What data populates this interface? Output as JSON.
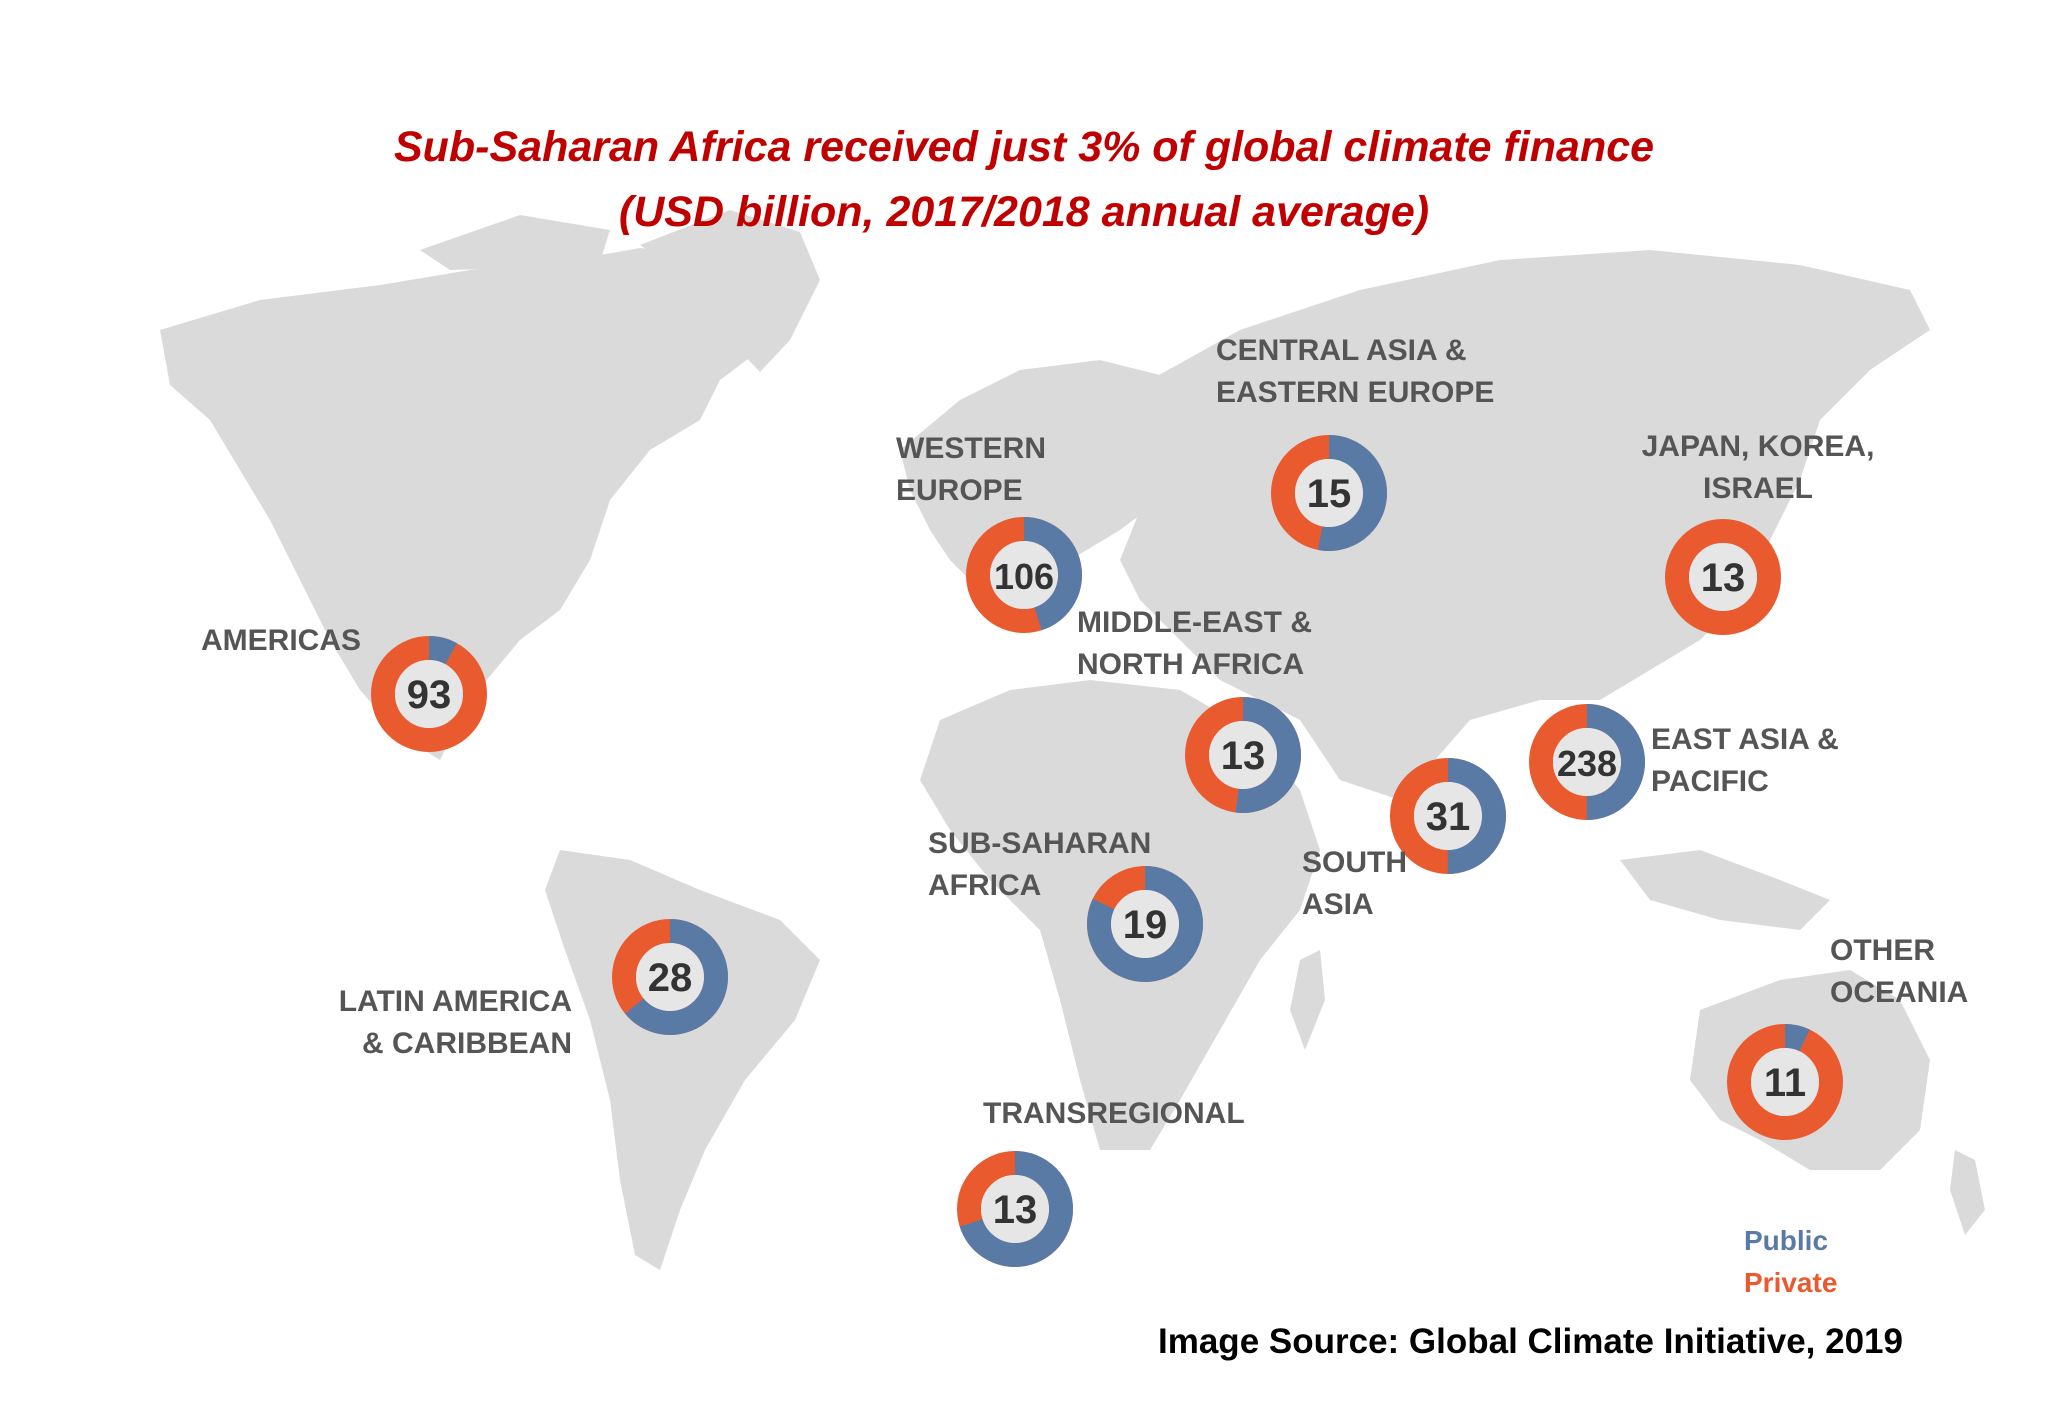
{
  "title": {
    "line1": "Sub-Saharan Africa received just 3% of global climate finance",
    "line2": "(USD billion, 2017/2018 annual average)"
  },
  "colors": {
    "public": "#5a7aa6",
    "private": "#ea5a2f",
    "land": "#dadada",
    "label": "#555555",
    "title": "#c00000"
  },
  "legend": {
    "public": "Public",
    "private": "Private"
  },
  "source": "Image Source: Global Climate Initiative, 2019",
  "regions": [
    {
      "id": "americas",
      "label": [
        "AMERICAS"
      ],
      "value": "93",
      "public_share": 0.08
    },
    {
      "id": "latin-america",
      "label": [
        "LATIN AMERICA",
        "& CARIBBEAN"
      ],
      "value": "28",
      "public_share": 0.64
    },
    {
      "id": "western-europe",
      "label": [
        "WESTERN",
        "EUROPE"
      ],
      "value": "106",
      "public_share": 0.45
    },
    {
      "id": "central-asia",
      "label": [
        "CENTRAL ASIA &",
        "EASTERN EUROPE"
      ],
      "value": "15",
      "public_share": 0.53
    },
    {
      "id": "japan-korea",
      "label": [
        "JAPAN, KOREA,",
        "ISRAEL"
      ],
      "value": "13",
      "public_share": 0.0
    },
    {
      "id": "mena",
      "label": [
        "MIDDLE-EAST &",
        "NORTH AFRICA"
      ],
      "value": "13",
      "public_share": 0.52
    },
    {
      "id": "east-asia",
      "label": [
        "EAST ASIA &",
        "PACIFIC"
      ],
      "value": "238",
      "public_share": 0.5
    },
    {
      "id": "south-asia",
      "label": [
        "SOUTH",
        "ASIA"
      ],
      "value": "31",
      "public_share": 0.5
    },
    {
      "id": "sub-saharan",
      "label": [
        "SUB-SAHARAN",
        "AFRICA"
      ],
      "value": "19",
      "public_share": 0.82
    },
    {
      "id": "transregional",
      "label": [
        "TRANSREGIONAL"
      ],
      "value": "13",
      "public_share": 0.7
    },
    {
      "id": "other-oceania",
      "label": [
        "OTHER",
        "OCEANIA"
      ],
      "value": "11",
      "public_share": 0.07
    }
  ]
}
